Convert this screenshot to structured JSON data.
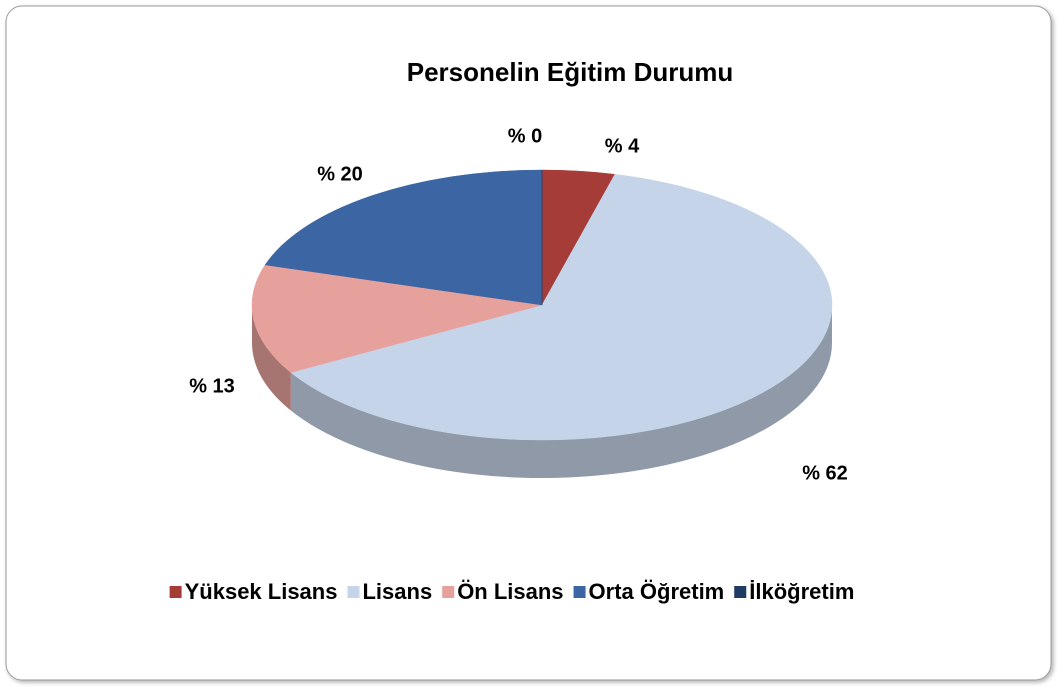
{
  "chart_data": {
    "type": "pie",
    "title": "Personelin Eğitim Durumu",
    "categories": [
      "Yüksek Lisans",
      "Lisans",
      "Ön Lisans",
      "Orta Öğretim",
      "İlköğretim"
    ],
    "values": [
      4,
      62,
      13,
      20,
      0
    ],
    "value_labels": [
      "% 4",
      "% 62",
      "% 13",
      "% 20",
      "% 0"
    ],
    "colors": [
      "#a63c38",
      "#c6d4ea",
      "#e7a19d",
      "#3c66a3",
      "#1f3a63"
    ],
    "legend": "bottom"
  }
}
